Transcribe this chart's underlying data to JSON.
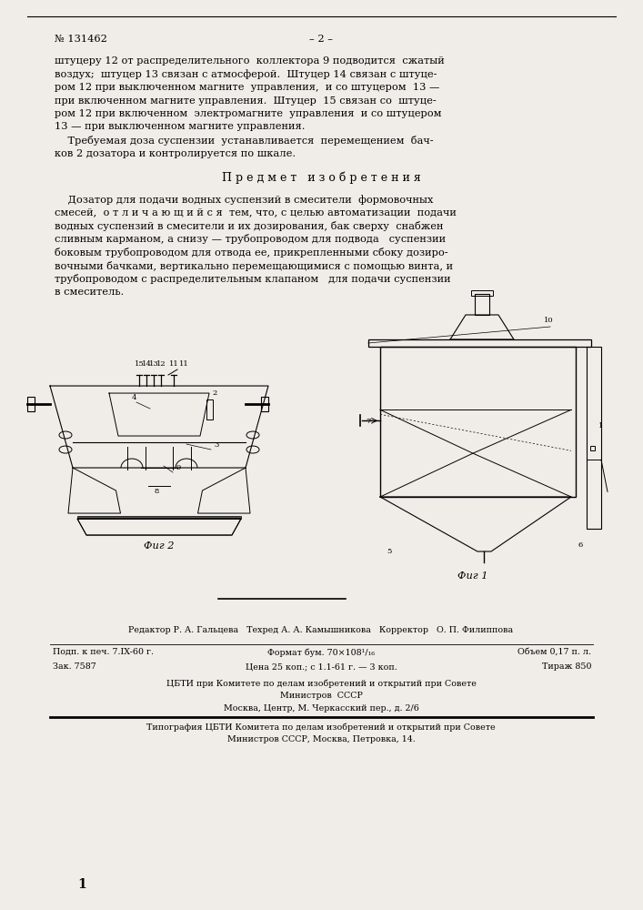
{
  "bg_color": "#f0ede8",
  "header_number": "№ 131462",
  "header_dash": "– 2 –",
  "body1_lines": [
    "штуцеру 12 от распределительного  коллектора 9 подводится  сжатый",
    "воздух;  штуцер 13 связан с атмосферой.  Штуцер 14 связан с штуце-",
    "ром 12 при выключенном магните  управления,  и со штуцером  13 —",
    "при включенном магните управления.  Штуцер  15 связан со  штуце-",
    "ром 12 при включенном  электромагните  управления  и со штуцером",
    "13 — при выключенном магните управления.",
    "    Требуемая доза суспензии  устанавливается  перемещением  бач-",
    "ков 2 дозатора и контролируется по шкале."
  ],
  "section_title": "П р е д м е т   и з о б р е т е н и я",
  "body2_lines": [
    "    Дозатор для подачи водных суспензий в смесители  формовочных",
    "смесей,  о т л и ч а ю щ и й с я  тем, что, с целью автоматизации  подачи",
    "водных суспензий в смесители и их дозирования, бак сверху  снабжен",
    "сливным карманом, а снизу — трубопроводом для подвода   суспензии",
    "боковым трубопроводом для отвода ее, прикрепленными сбоку дозиро-",
    "вочными бачками, вертикально перемещающимися с помощью винта, и",
    "трубопроводом с распределительным клапаном   для подачи суспензии",
    "в смеситель."
  ],
  "fig2_label": "Фиг 2",
  "fig1_label": "Фиг 1",
  "footer_editor": "Редактор Р. А. Гальцева   Техред А. А. Камышникова   Корректор   О. П. Филиппова",
  "footer_r1c1": "Подп. к печ. 7.IX-60 г.",
  "footer_r1c2": "Формат бум. 70×108¹/₁₆",
  "footer_r1c3": "Объем 0,17 п. л.",
  "footer_r2c1": "Зак. 7587",
  "footer_r2c2": "Цена 25 коп.; с 1.1-61 г. — 3 коп.",
  "footer_r2c3": "Тираж 850",
  "footer_cbti1": "ЦБТИ при Комитете по делам изобретений и открытий при Совете",
  "footer_cbti2": "Министров  СССР",
  "footer_cbti3": "Москва, Центр, М. Черкасский пер., д. 2/6",
  "footer_typo1": "Типография ЦБТИ Комитета по делам изобретений и открытий при Совете",
  "footer_typo2": "Министров СССР, Москва, Петровка, 14.",
  "page_number": "1"
}
